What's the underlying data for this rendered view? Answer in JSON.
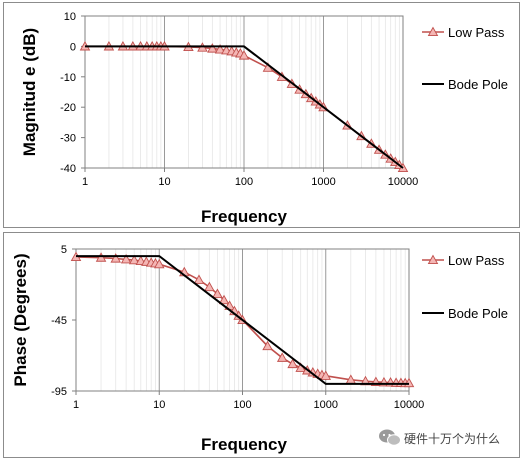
{
  "chart_data": [
    {
      "type": "line",
      "xlabel": "Frequency",
      "ylabel": "Magnitud e (dB)",
      "xscale": "log",
      "xlim": [
        1,
        10000
      ],
      "ylim": [
        -40,
        10
      ],
      "xticks": [
        1,
        10,
        100,
        1000,
        10000
      ],
      "xtick_labels": [
        "1",
        "10",
        "100",
        "1000",
        "10000"
      ],
      "yticks": [
        10,
        0,
        -10,
        -20,
        -30,
        -40
      ],
      "ytick_labels": [
        "10",
        "0",
        "-10",
        "-20",
        "-30",
        "-40"
      ],
      "grid": "vertical",
      "legend_position": "right",
      "series": [
        {
          "name": "Low Pass",
          "color": "#c0504d",
          "marker": "triangle",
          "marker_fill": "#f4b6b4",
          "x": [
            1,
            2,
            3,
            4,
            5,
            6,
            7,
            8,
            9,
            10,
            20,
            30,
            40,
            50,
            60,
            70,
            80,
            90,
            100,
            200,
            300,
            400,
            500,
            600,
            700,
            800,
            900,
            1000,
            2000,
            3000,
            4000,
            5000,
            6000,
            7000,
            8000,
            9000,
            10000
          ],
          "values": [
            0,
            0,
            0,
            0,
            0,
            0,
            0,
            0,
            0,
            0,
            -0.2,
            -0.4,
            -0.7,
            -1.0,
            -1.3,
            -1.6,
            -2.0,
            -2.3,
            -3.0,
            -7.0,
            -10.0,
            -12.3,
            -14.2,
            -15.7,
            -17.0,
            -18.1,
            -19.1,
            -20.0,
            -26.0,
            -29.5,
            -32.0,
            -34.0,
            -35.6,
            -36.9,
            -38.0,
            -39.0,
            -40.0
          ]
        },
        {
          "name": "Bode Pole",
          "color": "#000000",
          "x": [
            1,
            100,
            10000
          ],
          "values": [
            0,
            0,
            -40
          ]
        }
      ]
    },
    {
      "type": "line",
      "xlabel": "Frequency",
      "ylabel": "Phase (Degrees)",
      "xscale": "log",
      "xlim": [
        1,
        10000
      ],
      "ylim": [
        -95,
        5
      ],
      "xticks": [
        1,
        10,
        100,
        1000,
        10000
      ],
      "xtick_labels": [
        "1",
        "10",
        "100",
        "1000",
        "10000"
      ],
      "yticks": [
        5,
        -45,
        -95
      ],
      "ytick_labels": [
        "5",
        "-45",
        "-95"
      ],
      "grid": "vertical",
      "legend_position": "right",
      "series": [
        {
          "name": "Low Pass",
          "color": "#c0504d",
          "marker": "triangle",
          "marker_fill": "#f4b6b4",
          "x": [
            1,
            2,
            3,
            4,
            5,
            6,
            7,
            8,
            9,
            10,
            20,
            30,
            40,
            50,
            60,
            70,
            80,
            90,
            100,
            200,
            300,
            400,
            500,
            600,
            700,
            800,
            900,
            1000,
            2000,
            3000,
            4000,
            5000,
            6000,
            7000,
            8000,
            9000,
            10000
          ],
          "values": [
            -0.6,
            -1.1,
            -1.7,
            -2.3,
            -2.9,
            -3.4,
            -4.0,
            -4.6,
            -5.1,
            -5.7,
            -11.3,
            -16.7,
            -21.8,
            -26.6,
            -31.0,
            -35.0,
            -38.7,
            -42.0,
            -45.0,
            -63.4,
            -71.6,
            -76.0,
            -78.7,
            -80.5,
            -81.9,
            -82.9,
            -83.7,
            -84.3,
            -87.1,
            -88.1,
            -88.6,
            -88.9,
            -89.0,
            -89.2,
            -89.3,
            -89.4,
            -89.4
          ]
        },
        {
          "name": "Bode Pole",
          "color": "#000000",
          "x": [
            1,
            10,
            1000,
            10000
          ],
          "values": [
            0,
            0,
            -90,
            -90
          ]
        }
      ]
    }
  ],
  "watermark": {
    "text": "硬件十万个为什么"
  }
}
